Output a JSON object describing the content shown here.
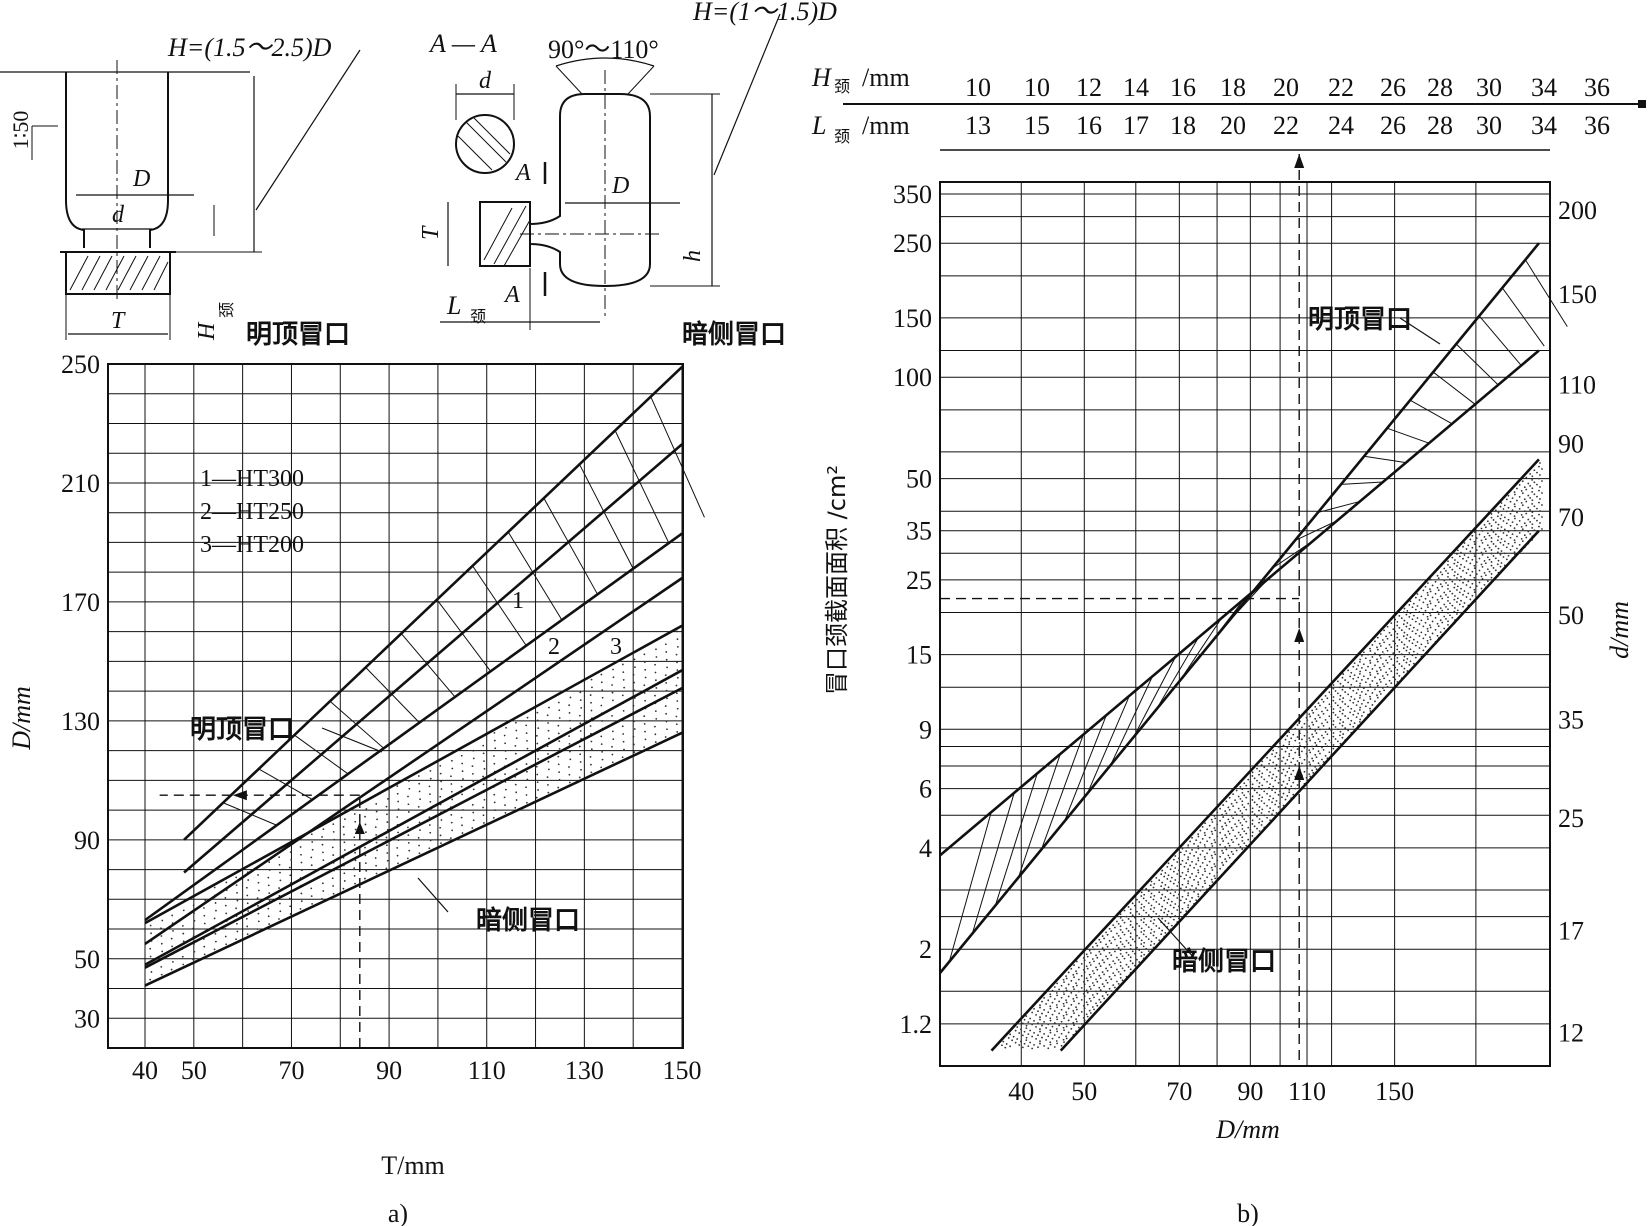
{
  "sketches": {
    "top_riser": {
      "H_formula": "H=(1.5～2.5)D",
      "taper": "1∶50",
      "D": "D",
      "d": "d",
      "T": "T",
      "H_neck": "H",
      "neck_sub": "颈",
      "caption": "明顶冒口"
    },
    "side_riser": {
      "H_formula": "H=(1～1.5)D",
      "section": "A — A",
      "angle": "90°～110°",
      "d": "d",
      "D": "D",
      "T": "T",
      "h": "h",
      "L_neck": "L",
      "neck_sub": "颈",
      "A1": "A",
      "A2": "A",
      "caption": "暗侧冒口"
    }
  },
  "chart_data": [
    {
      "id": "a",
      "type": "line",
      "caption": "a)",
      "xlabel": "T/mm",
      "ylabel": "D/mm",
      "xlim": [
        40,
        150
      ],
      "ylim": [
        30,
        250
      ],
      "x_ticks": [
        40,
        50,
        70,
        90,
        110,
        130,
        150
      ],
      "y_ticks": [
        30,
        50,
        90,
        130,
        170,
        210,
        250
      ],
      "grid": true,
      "legend": [
        "1—HT300",
        "2—HT250",
        "3—HT200"
      ],
      "curve_labels": [
        "1",
        "2",
        "3"
      ],
      "annotations": [
        "明顶冒口",
        "暗侧冒口"
      ],
      "series": [
        {
          "name": "1",
          "group": "明顶冒口",
          "x": [
            48,
            150
          ],
          "y": [
            90,
            249
          ]
        },
        {
          "name": "2",
          "group": "明顶冒口",
          "x": [
            48,
            150
          ],
          "y": [
            79,
            223
          ]
        },
        {
          "name": "3",
          "group": "明顶冒口",
          "x": [
            40,
            150
          ],
          "y": [
            63,
            193
          ]
        },
        {
          "name": "",
          "group": "明顶冒口",
          "x": [
            40,
            150
          ],
          "y": [
            55,
            178
          ]
        },
        {
          "name": "",
          "group": "暗侧冒口",
          "x": [
            40,
            150
          ],
          "y": [
            62,
            162
          ]
        },
        {
          "name": "",
          "group": "暗侧冒口",
          "x": [
            40,
            150
          ],
          "y": [
            48,
            147
          ]
        },
        {
          "name": "",
          "group": "暗侧冒口",
          "x": [
            40,
            150
          ],
          "y": [
            47,
            141
          ]
        },
        {
          "name": "",
          "group": "暗侧冒口",
          "x": [
            40,
            150
          ],
          "y": [
            41,
            126
          ]
        }
      ],
      "example": {
        "T": 84,
        "D": 105
      }
    },
    {
      "id": "b",
      "type": "line",
      "caption": "b)",
      "xlabel": "D/mm",
      "ylabel": "冒口颈截面面积 /cm²",
      "y2label": "d/mm",
      "x_ticks": [
        40,
        50,
        70,
        90,
        110,
        150
      ],
      "y_ticks": [
        1.2,
        2,
        4,
        6,
        9,
        15,
        25,
        35,
        50,
        100,
        150,
        250,
        350
      ],
      "y2_ticks": [
        12,
        17,
        25,
        35,
        50,
        70,
        90,
        110,
        150,
        200
      ],
      "grid": true,
      "annotations": [
        "明顶冒口",
        "暗侧冒口"
      ],
      "neck_table": {
        "H_label": "H",
        "L_label": "L",
        "neck_sub": "颈",
        "unit": "/mm",
        "H_values": [
          "10",
          "10",
          "12",
          "14",
          "16",
          "18",
          "20",
          "22",
          "26",
          "28",
          "30",
          "34",
          "36"
        ],
        "L_values": [
          "13",
          "15",
          "16",
          "17",
          "18",
          "20",
          "22",
          "24",
          "26",
          "28",
          "30",
          "34",
          "36"
        ]
      },
      "series": [
        {
          "name": "",
          "group": "明顶冒口",
          "x": [
            30,
            250
          ],
          "y": [
            1.7,
            250
          ]
        },
        {
          "name": "",
          "group": "明顶冒口",
          "x": [
            30,
            250
          ],
          "y": [
            3.8,
            120
          ]
        },
        {
          "name": "",
          "group": "暗侧冒口",
          "x": [
            36,
            250
          ],
          "y": [
            1.0,
            57
          ]
        },
        {
          "name": "",
          "group": "暗侧冒口",
          "x": [
            46,
            250
          ],
          "y": [
            1.0,
            35
          ]
        }
      ],
      "example": {
        "D": 107,
        "area": 22
      }
    }
  ]
}
